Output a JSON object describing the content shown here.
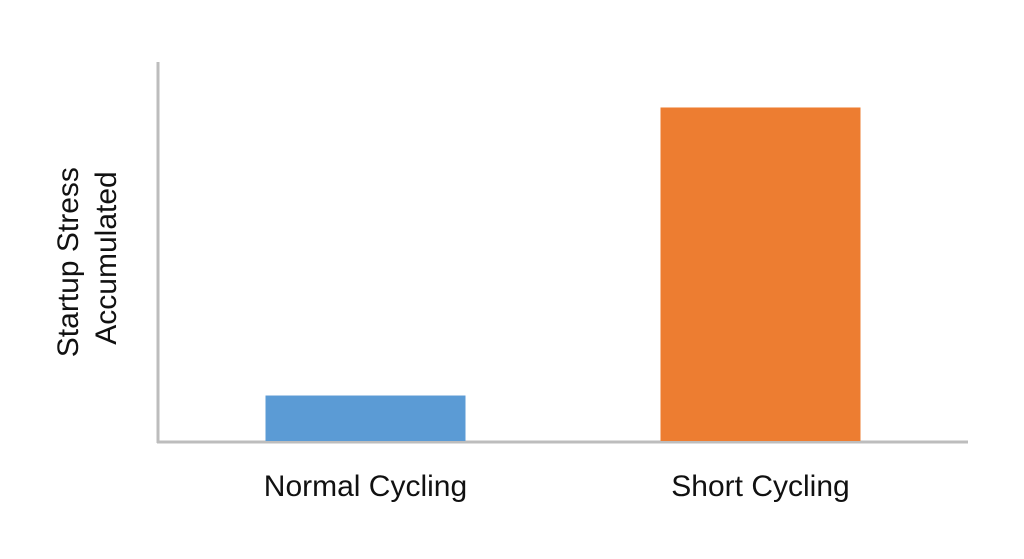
{
  "chart_data": {
    "type": "bar",
    "ylabel": [
      "Startup Stress",
      "Accumulated"
    ],
    "categories": [
      "Normal Cycling",
      "Short Cycling"
    ],
    "values": [
      12,
      88
    ],
    "colors": [
      "#5b9bd5",
      "#ed7d31"
    ],
    "ylim": [
      0,
      100
    ]
  }
}
